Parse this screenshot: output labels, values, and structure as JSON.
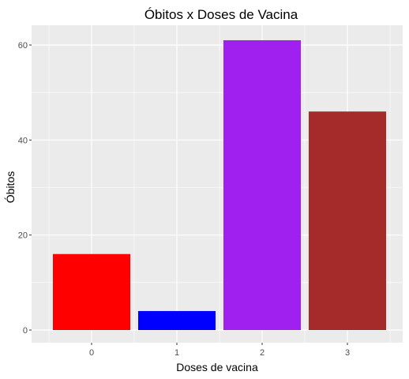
{
  "chart_data": {
    "type": "bar",
    "title": "Óbitos x Doses de Vacina",
    "xlabel": "Doses de vacina",
    "ylabel": "Óbitos",
    "categories": [
      "0",
      "1",
      "2",
      "3"
    ],
    "values": [
      16,
      4,
      61,
      46
    ],
    "colors": [
      "#ff0000",
      "#0000ff",
      "#a020f0",
      "#a52a2a"
    ],
    "ylim": [
      0,
      64
    ],
    "yticks": [
      "0",
      "20",
      "40",
      "60"
    ],
    "ytick_values": [
      0,
      20,
      40,
      60
    ],
    "grid": true,
    "panel_color": "#ebebeb",
    "grid_color": "#ffffff"
  }
}
